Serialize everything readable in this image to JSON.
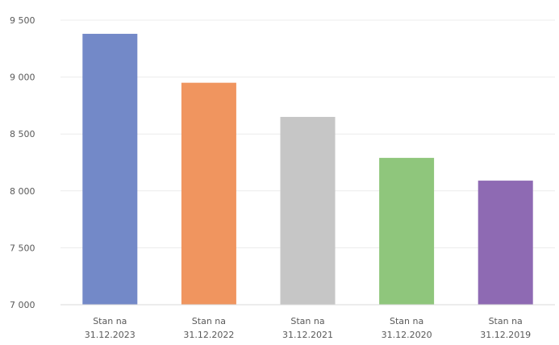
{
  "chart_data": {
    "type": "bar",
    "categories": [
      [
        "Stan na",
        "31.12.2023"
      ],
      [
        "Stan na",
        "31.12.2022"
      ],
      [
        "Stan na",
        "31.12.2021"
      ],
      [
        "Stan na",
        "31.12.2020"
      ],
      [
        "Stan na",
        "31.12.2019"
      ]
    ],
    "values": [
      9380,
      8950,
      8650,
      8290,
      8090
    ],
    "colors": [
      "#7389C8",
      "#F0955F",
      "#C6C6C6",
      "#8FC67C",
      "#8E6AB3"
    ],
    "ylim": [
      7000,
      9500
    ],
    "yticks": [
      7000,
      7500,
      8000,
      8500,
      9000,
      9500
    ],
    "ytick_labels": [
      "7 000",
      "7 500",
      "8 000",
      "8 500",
      "9 000",
      "9 500"
    ],
    "grid": true,
    "title": "",
    "xlabel": "",
    "ylabel": ""
  }
}
